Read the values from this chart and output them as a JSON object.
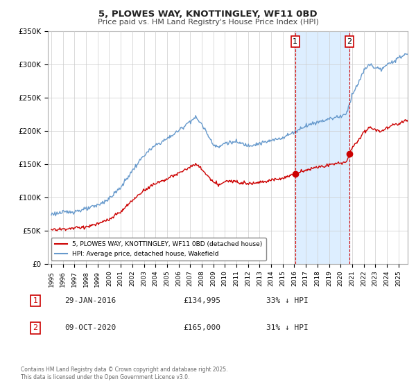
{
  "title": "5, PLOWES WAY, KNOTTINGLEY, WF11 0BD",
  "subtitle": "Price paid vs. HM Land Registry's House Price Index (HPI)",
  "ylabel_ticks": [
    "£0",
    "£50K",
    "£100K",
    "£150K",
    "£200K",
    "£250K",
    "£300K",
    "£350K"
  ],
  "ylim": [
    0,
    350000
  ],
  "xlim_start": 1994.7,
  "xlim_end": 2025.8,
  "legend_line1": "5, PLOWES WAY, KNOTTINGLEY, WF11 0BD (detached house)",
  "legend_line2": "HPI: Average price, detached house, Wakefield",
  "transaction1_date": "29-JAN-2016",
  "transaction1_price": "£134,995",
  "transaction1_hpi": "33% ↓ HPI",
  "transaction1_year": 2016.08,
  "transaction1_value": 134995,
  "transaction2_date": "09-OCT-2020",
  "transaction2_price": "£165,000",
  "transaction2_hpi": "31% ↓ HPI",
  "transaction2_year": 2020.77,
  "transaction2_value": 165000,
  "line_red": "#cc0000",
  "line_blue": "#6699cc",
  "shade_color": "#ddeeff",
  "marker_box_color": "#cc0000",
  "background_color": "#ffffff",
  "grid_color": "#cccccc",
  "footnote": "Contains HM Land Registry data © Crown copyright and database right 2025.\nThis data is licensed under the Open Government Licence v3.0."
}
